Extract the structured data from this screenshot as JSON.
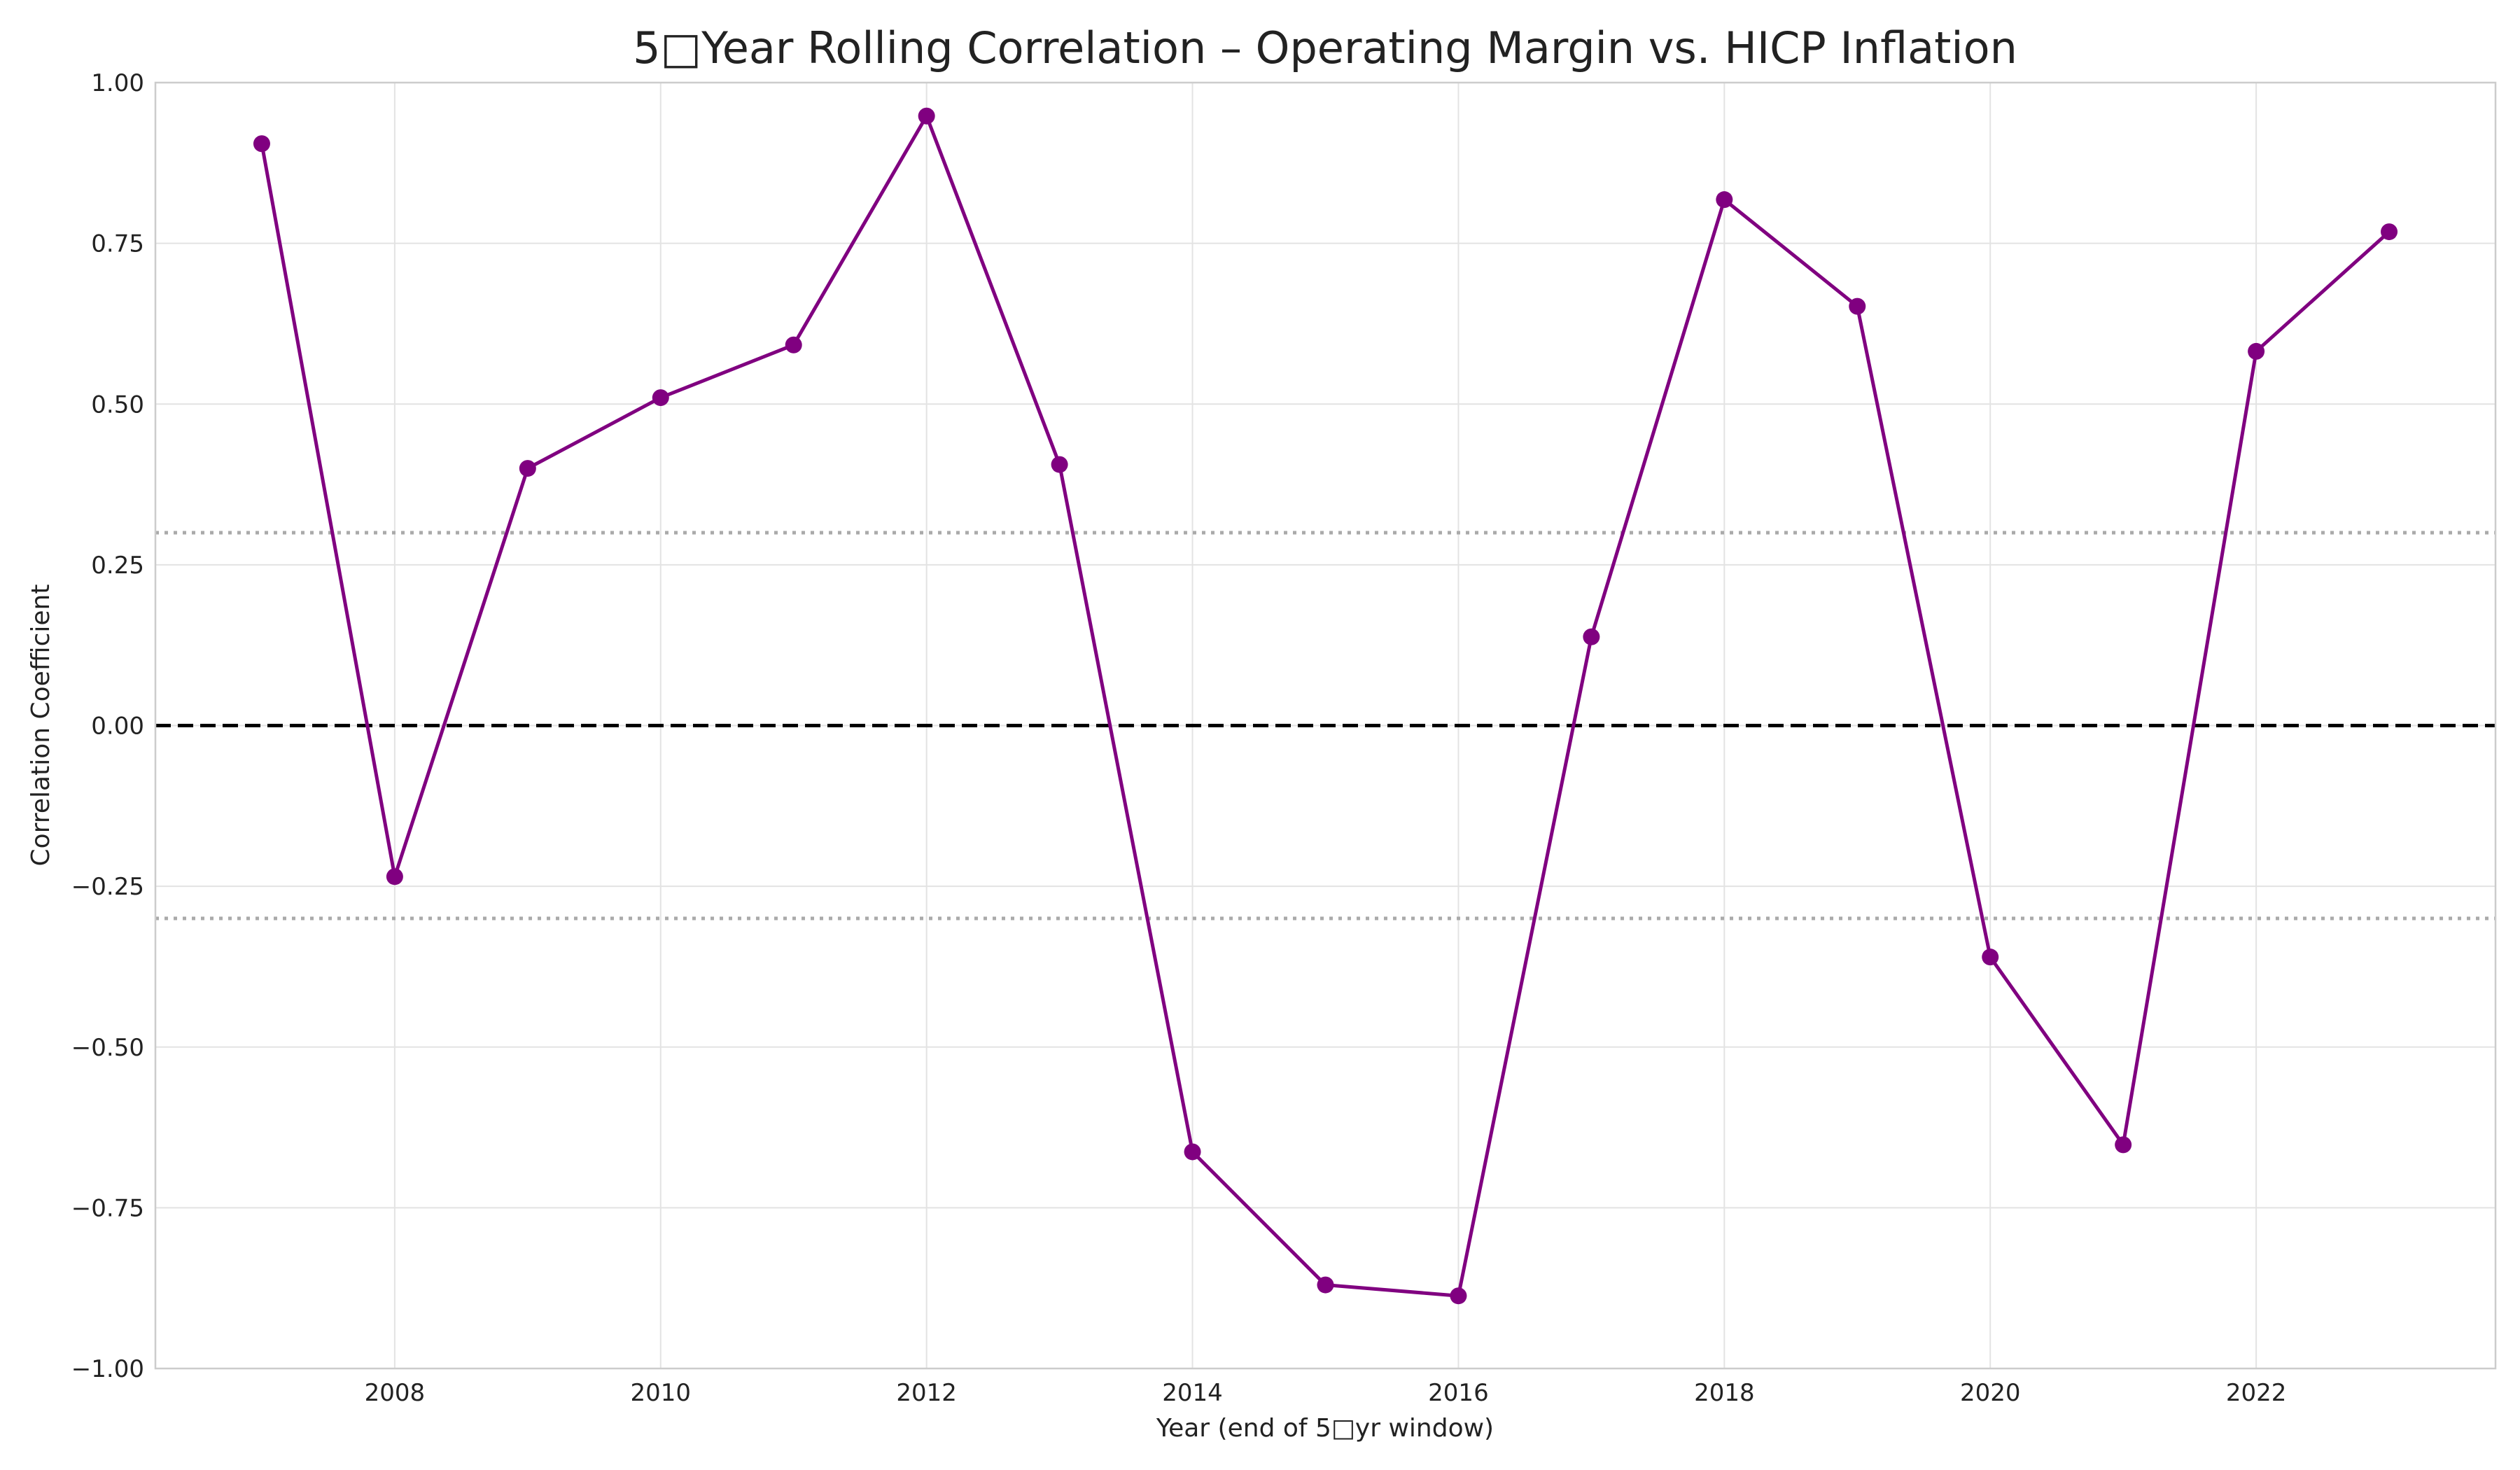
{
  "chart_data": {
    "type": "line",
    "title": "5□Year Rolling Correlation – Operating Margin vs. HICP Inflation",
    "xlabel": "Year (end of 5□yr window)",
    "ylabel": "Correlation Coefficient",
    "xlim": [
      2006.2,
      2023.8
    ],
    "ylim": [
      -1.0,
      1.0
    ],
    "grid": true,
    "x_ticks": [
      "2008",
      "2010",
      "2012",
      "2014",
      "2016",
      "2018",
      "2020",
      "2022"
    ],
    "y_ticks": [
      "1.00",
      "0.75",
      "0.50",
      "0.25",
      "0.00",
      "−0.25",
      "−0.50",
      "−0.75",
      "−1.00"
    ],
    "series": [
      {
        "color": "#800080",
        "marker": "circle",
        "x": [
          2007,
          2008,
          2009,
          2010,
          2011,
          2012,
          2013,
          2014,
          2015,
          2016,
          2017,
          2018,
          2019,
          2020,
          2021,
          2022,
          2023
        ],
        "values": [
          0.905,
          -0.235,
          0.4,
          0.51,
          0.592,
          0.948,
          0.406,
          -0.663,
          -0.87,
          -0.887,
          0.138,
          0.818,
          0.652,
          -0.36,
          -0.652,
          0.582,
          0.768
        ]
      }
    ],
    "reference_lines": [
      {
        "y": 0.0,
        "style": "dashed",
        "color": "#000000"
      },
      {
        "y": 0.3,
        "style": "dotted",
        "color": "#aaaaaa"
      },
      {
        "y": -0.3,
        "style": "dotted",
        "color": "#aaaaaa"
      }
    ]
  }
}
